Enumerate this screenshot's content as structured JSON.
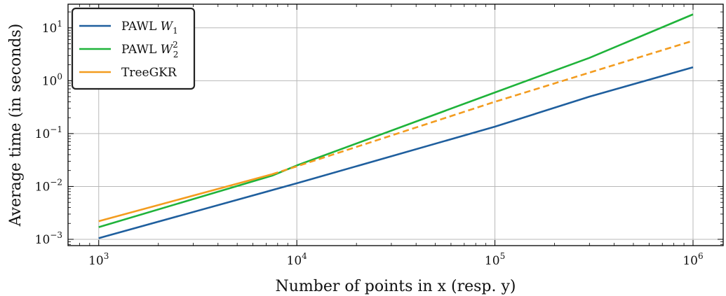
{
  "chart_data": {
    "type": "line",
    "xlabel": "Number of points in x (resp. y)",
    "ylabel": "Average time (in seconds)",
    "x_scale": "log",
    "y_scale": "log",
    "xlim": [
      700,
      1420000
    ],
    "ylim": [
      0.00076,
      28
    ],
    "grid": true,
    "legend_position": "top-left",
    "x_ticks": [
      {
        "value": 1000,
        "base": "10",
        "exp": "3"
      },
      {
        "value": 10000,
        "base": "10",
        "exp": "4"
      },
      {
        "value": 100000,
        "base": "10",
        "exp": "5"
      },
      {
        "value": 1000000,
        "base": "10",
        "exp": "6"
      }
    ],
    "y_ticks": [
      {
        "value": 0.001,
        "base": "10",
        "exp": "−3"
      },
      {
        "value": 0.01,
        "base": "10",
        "exp": "−2"
      },
      {
        "value": 0.1,
        "base": "10",
        "exp": "−1"
      },
      {
        "value": 1,
        "base": "10",
        "exp": "0"
      },
      {
        "value": 10,
        "base": "10",
        "exp": "1"
      }
    ],
    "series": [
      {
        "name": "PAWL W_1",
        "legend_parts": {
          "text": "PAWL ",
          "var": "W",
          "sub": "1",
          "sup": ""
        },
        "color": "#1f5f9e",
        "segments": [
          {
            "style": "solid",
            "x": [
              1000,
              10000,
              100000,
              300000,
              1000000
            ],
            "y": [
              0.00105,
              0.0115,
              0.135,
              0.5,
              1.8
            ]
          }
        ]
      },
      {
        "name": "PAWL W_2^2",
        "legend_parts": {
          "text": "PAWL ",
          "var": "W",
          "sub": "2",
          "sup": "2"
        },
        "color": "#1fb33a",
        "segments": [
          {
            "style": "solid",
            "x": [
              1000,
              7500,
              10000,
              100000,
              300000,
              1000000
            ],
            "y": [
              0.0017,
              0.016,
              0.025,
              0.6,
              2.7,
              18
            ]
          }
        ]
      },
      {
        "name": "TreeGKR",
        "legend_parts": {
          "text": "TreeGKR",
          "var": "",
          "sub": "",
          "sup": ""
        },
        "color": "#f39c1f",
        "segments": [
          {
            "style": "solid",
            "x": [
              1000,
              7500
            ],
            "y": [
              0.0022,
              0.017
            ]
          },
          {
            "style": "dashed",
            "x": [
              7500,
              10000,
              100000,
              1000000
            ],
            "y": [
              0.017,
              0.024,
              0.4,
              5.7
            ]
          }
        ]
      }
    ]
  }
}
